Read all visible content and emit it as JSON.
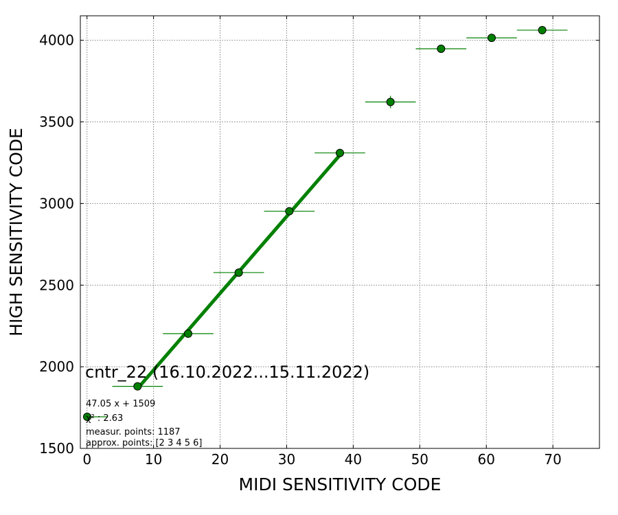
{
  "chart_data": {
    "type": "scatter",
    "title": "",
    "xlabel": "MIDI SENSITIVITY CODE",
    "ylabel": "HIGH SENSITIVITY CODE",
    "xlim": [
      -1,
      77
    ],
    "ylim": [
      1500,
      4150
    ],
    "xticks": [
      0,
      10,
      20,
      30,
      40,
      50,
      60,
      70
    ],
    "yticks": [
      1500,
      2000,
      2500,
      3000,
      3500,
      4000
    ],
    "xtick_labels": [
      "0",
      "10",
      "20",
      "30",
      "40",
      "50",
      "60",
      "70"
    ],
    "ytick_labels": [
      "1500",
      "2000",
      "2500",
      "3000",
      "3500",
      "4000"
    ],
    "grid": true,
    "series": [
      {
        "marker_color": "#008000",
        "points": [
          {
            "x": 7.6,
            "y": 1880,
            "xerr": 3.8,
            "yerr": 8
          },
          {
            "x": 15.2,
            "y": 2203,
            "xerr": 3.8,
            "yerr": 10
          },
          {
            "x": 22.8,
            "y": 2577,
            "xerr": 3.8,
            "yerr": 10
          },
          {
            "x": 30.4,
            "y": 2953,
            "xerr": 3.8,
            "yerr": 10
          },
          {
            "x": 38.0,
            "y": 3310,
            "xerr": 3.8,
            "yerr": 15
          },
          {
            "x": 45.6,
            "y": 3622,
            "xerr": 3.8,
            "yerr": 38
          },
          {
            "x": 53.2,
            "y": 3948,
            "xerr": 3.8,
            "yerr": 10
          },
          {
            "x": 60.8,
            "y": 4015,
            "xerr": 3.8,
            "yerr": 10
          },
          {
            "x": 68.4,
            "y": 4062,
            "xerr": 3.8,
            "yerr": 10
          }
        ]
      }
    ],
    "fit_line": {
      "slope": 47.05,
      "intercept": 1509,
      "x_range": [
        7.6,
        38.0
      ],
      "color": "#008000"
    },
    "annotations": {
      "name": "cntr_22 (16.10.2022...15.11.2022)",
      "fit": "47.05 x + 1509",
      "chi_sq": "χ² : 2.63",
      "measur": "measur. points: 1187",
      "approx": "approx. points: [2 3 4 5 6]"
    },
    "legend_placement": "lower-left"
  }
}
